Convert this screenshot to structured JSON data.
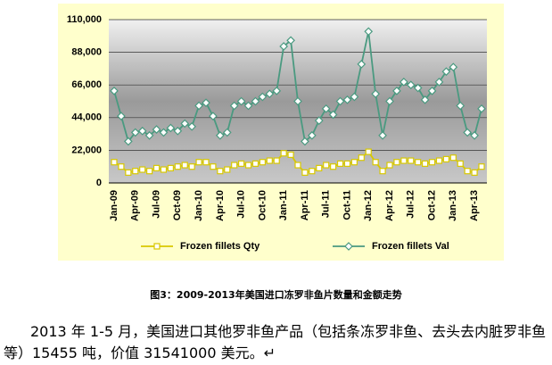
{
  "chart_data": {
    "type": "line",
    "categories": [
      "Jan-09",
      null,
      null,
      "Apr-09",
      null,
      null,
      "Jul-09",
      null,
      null,
      "Oct-09",
      null,
      null,
      "Jan-10",
      null,
      null,
      "Apr-10",
      null,
      null,
      "Jul-10",
      null,
      null,
      "Oct-10",
      null,
      null,
      "Jan-11",
      null,
      null,
      "Apr-11",
      null,
      null,
      "Jul-11",
      null,
      null,
      "Oct-11",
      null,
      null,
      "Jan-12",
      null,
      null,
      "Apr-12",
      null,
      null,
      "Jul-12",
      null,
      null,
      "Oct-12",
      null,
      null,
      "Jan-13",
      null,
      null,
      "Apr-13",
      null
    ],
    "series": [
      {
        "name": "Frozen fillets Qty",
        "color": "#d8c800",
        "marker": "square",
        "values": [
          14000,
          11000,
          7000,
          8000,
          9000,
          8000,
          10000,
          9000,
          10000,
          11000,
          12000,
          11000,
          14000,
          14000,
          11000,
          8000,
          9000,
          12000,
          13000,
          12000,
          13000,
          14000,
          15000,
          15000,
          20000,
          19000,
          12000,
          7000,
          8000,
          10000,
          12000,
          11000,
          13000,
          13000,
          14000,
          17000,
          21000,
          14000,
          8000,
          12000,
          14000,
          15000,
          15000,
          14000,
          13000,
          14000,
          15000,
          16000,
          17000,
          13000,
          8000,
          7000,
          11000
        ]
      },
      {
        "name": "Frozen fillets Val",
        "color": "#4a9a80",
        "marker": "diamond",
        "values": [
          62000,
          45000,
          28000,
          34000,
          35000,
          32000,
          36000,
          34000,
          37000,
          35000,
          40000,
          38000,
          52000,
          54000,
          45000,
          32000,
          34000,
          52000,
          55000,
          52000,
          55000,
          58000,
          60000,
          62000,
          92000,
          96000,
          55000,
          28000,
          32000,
          42000,
          50000,
          46000,
          55000,
          56000,
          58000,
          80000,
          102000,
          60000,
          32000,
          55000,
          62000,
          68000,
          66000,
          64000,
          56000,
          62000,
          68000,
          75000,
          78000,
          52000,
          34000,
          32000,
          50000
        ]
      }
    ],
    "ylim": [
      0,
      110000
    ],
    "yticks": [
      0,
      {
        "value": 22000,
        "label": "22,000"
      },
      {
        "value": 44000,
        "label": "44,000"
      },
      {
        "value": 66000,
        "label": "66,000"
      },
      {
        "value": 88000,
        "label": "88,000"
      },
      {
        "value": 110000,
        "label": "110,000"
      }
    ],
    "grid": true,
    "legend": "bottom"
  },
  "caption": "图3：2009-2013年美国进口冻罗非鱼片数量和金额走势",
  "paragraph": "2013 年 1-5 月，美国进口其他罗非鱼产品（包括条冻罗非鱼、去头去内脏罗非鱼等）15455 吨，价值 31541000 美元。↵"
}
